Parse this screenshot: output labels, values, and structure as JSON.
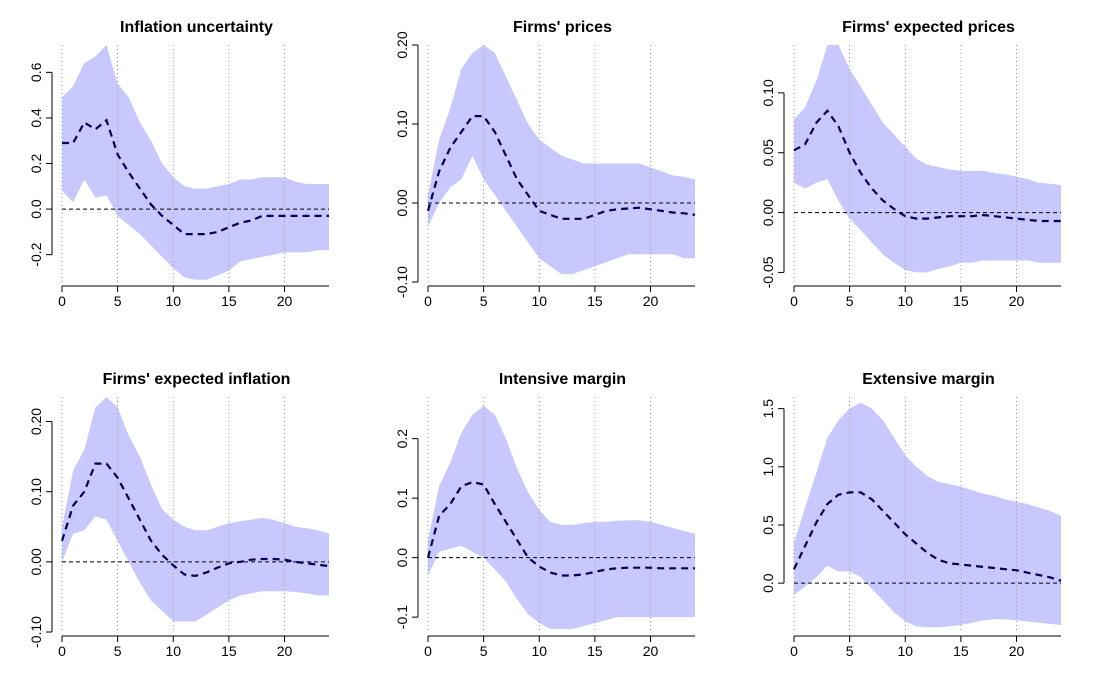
{
  "figure": {
    "band_color": "#c8c8ff",
    "line_color": "#00005a",
    "zero_color": "#000000",
    "grid_color": "#999999"
  },
  "chart_data": [
    {
      "type": "line",
      "title": "Inflation uncertainty",
      "xlabel": "",
      "ylabel": "",
      "xlim": [
        0,
        24
      ],
      "ylim": [
        -0.32,
        0.72
      ],
      "x_ticks": [
        0,
        5,
        10,
        15,
        20
      ],
      "x_tick_labels": [
        "0",
        "5",
        "10",
        "15",
        "20"
      ],
      "y_ticks": [
        -0.2,
        0.0,
        0.2,
        0.4,
        0.6
      ],
      "y_tick_labels": [
        "-0.2",
        "0.0",
        "0.2",
        "0.4",
        "0.6"
      ],
      "vgrid": [
        0,
        5,
        10,
        15,
        20
      ],
      "x": [
        0,
        1,
        2,
        3,
        4,
        5,
        6,
        7,
        8,
        9,
        10,
        11,
        12,
        13,
        14,
        15,
        16,
        17,
        18,
        19,
        20,
        21,
        22,
        23,
        24
      ],
      "series": [
        {
          "name": "median",
          "values": [
            0.29,
            0.29,
            0.38,
            0.35,
            0.39,
            0.24,
            0.16,
            0.09,
            0.02,
            -0.03,
            -0.07,
            -0.11,
            -0.11,
            -0.11,
            -0.1,
            -0.08,
            -0.06,
            -0.05,
            -0.03,
            -0.03,
            -0.03,
            -0.03,
            -0.03,
            -0.03,
            -0.03
          ]
        },
        {
          "name": "lower",
          "values": [
            0.08,
            0.03,
            0.13,
            0.05,
            0.06,
            -0.03,
            -0.07,
            -0.11,
            -0.16,
            -0.21,
            -0.26,
            -0.3,
            -0.31,
            -0.31,
            -0.29,
            -0.27,
            -0.23,
            -0.22,
            -0.21,
            -0.2,
            -0.19,
            -0.19,
            -0.19,
            -0.18,
            -0.18
          ]
        },
        {
          "name": "upper",
          "values": [
            0.49,
            0.54,
            0.64,
            0.67,
            0.72,
            0.55,
            0.49,
            0.38,
            0.3,
            0.2,
            0.14,
            0.1,
            0.09,
            0.09,
            0.1,
            0.11,
            0.13,
            0.13,
            0.14,
            0.14,
            0.14,
            0.12,
            0.11,
            0.11,
            0.11
          ]
        }
      ]
    },
    {
      "type": "line",
      "title": "Firms' prices",
      "xlabel": "",
      "ylabel": "",
      "xlim": [
        0,
        24
      ],
      "ylim": [
        -0.1,
        0.2
      ],
      "x_ticks": [
        0,
        5,
        10,
        15,
        20
      ],
      "x_tick_labels": [
        "0",
        "5",
        "10",
        "15",
        "20"
      ],
      "y_ticks": [
        -0.1,
        0.0,
        0.1,
        0.2
      ],
      "y_tick_labels": [
        "-0.10",
        "0.00",
        "0.10",
        "0.20"
      ],
      "vgrid": [
        0,
        5,
        10,
        15,
        20
      ],
      "x": [
        0,
        1,
        2,
        3,
        4,
        5,
        6,
        7,
        8,
        9,
        10,
        11,
        12,
        13,
        14,
        15,
        16,
        17,
        18,
        19,
        20,
        21,
        22,
        23,
        24
      ],
      "series": [
        {
          "name": "median",
          "values": [
            -0.01,
            0.04,
            0.07,
            0.09,
            0.11,
            0.11,
            0.09,
            0.06,
            0.03,
            0.01,
            -0.01,
            -0.015,
            -0.02,
            -0.02,
            -0.02,
            -0.015,
            -0.01,
            -0.008,
            -0.007,
            -0.006,
            -0.008,
            -0.01,
            -0.012,
            -0.013,
            -0.015
          ]
        },
        {
          "name": "lower",
          "values": [
            -0.03,
            0.0,
            0.02,
            0.03,
            0.06,
            0.03,
            0.01,
            -0.01,
            -0.03,
            -0.05,
            -0.07,
            -0.08,
            -0.09,
            -0.09,
            -0.085,
            -0.08,
            -0.075,
            -0.07,
            -0.065,
            -0.065,
            -0.065,
            -0.065,
            -0.065,
            -0.07,
            -0.07
          ]
        },
        {
          "name": "upper",
          "values": [
            0.01,
            0.08,
            0.12,
            0.17,
            0.19,
            0.2,
            0.19,
            0.16,
            0.13,
            0.1,
            0.08,
            0.07,
            0.06,
            0.055,
            0.05,
            0.05,
            0.05,
            0.05,
            0.05,
            0.05,
            0.045,
            0.04,
            0.035,
            0.033,
            0.03
          ]
        }
      ]
    },
    {
      "type": "line",
      "title": "Firms' expected prices",
      "xlabel": "",
      "ylabel": "",
      "xlim": [
        0,
        24
      ],
      "ylim": [
        -0.058,
        0.14
      ],
      "x_ticks": [
        0,
        5,
        10,
        15,
        20
      ],
      "x_tick_labels": [
        "0",
        "5",
        "10",
        "15",
        "20"
      ],
      "y_ticks": [
        -0.05,
        0.0,
        0.05,
        0.1
      ],
      "y_tick_labels": [
        "-0.05",
        "0.00",
        "0.05",
        "0.10"
      ],
      "vgrid": [
        0,
        5,
        10,
        15,
        20
      ],
      "x": [
        0,
        1,
        2,
        3,
        4,
        5,
        6,
        7,
        8,
        9,
        10,
        11,
        12,
        13,
        14,
        15,
        16,
        17,
        18,
        19,
        20,
        21,
        22,
        23,
        24
      ],
      "series": [
        {
          "name": "median",
          "values": [
            0.052,
            0.057,
            0.075,
            0.085,
            0.072,
            0.05,
            0.033,
            0.02,
            0.01,
            0.003,
            -0.003,
            -0.005,
            -0.005,
            -0.004,
            -0.003,
            -0.003,
            -0.003,
            -0.002,
            -0.003,
            -0.004,
            -0.005,
            -0.006,
            -0.007,
            -0.007,
            -0.007
          ]
        },
        {
          "name": "lower",
          "values": [
            0.025,
            0.02,
            0.025,
            0.028,
            0.01,
            -0.005,
            -0.015,
            -0.025,
            -0.035,
            -0.042,
            -0.048,
            -0.05,
            -0.05,
            -0.047,
            -0.045,
            -0.042,
            -0.042,
            -0.04,
            -0.04,
            -0.04,
            -0.04,
            -0.04,
            -0.042,
            -0.042,
            -0.042
          ]
        },
        {
          "name": "upper",
          "values": [
            0.078,
            0.088,
            0.11,
            0.14,
            0.14,
            0.12,
            0.105,
            0.09,
            0.075,
            0.065,
            0.055,
            0.045,
            0.04,
            0.038,
            0.036,
            0.035,
            0.035,
            0.035,
            0.033,
            0.032,
            0.03,
            0.028,
            0.025,
            0.024,
            0.023
          ]
        }
      ]
    },
    {
      "type": "line",
      "title": "Firms' expected inflation",
      "xlabel": "",
      "ylabel": "",
      "xlim": [
        0,
        24
      ],
      "ylim": [
        -0.1,
        0.235
      ],
      "x_ticks": [
        0,
        5,
        10,
        15,
        20
      ],
      "x_tick_labels": [
        "0",
        "5",
        "10",
        "15",
        "20"
      ],
      "y_ticks": [
        -0.1,
        0.0,
        0.1,
        0.2
      ],
      "y_tick_labels": [
        "-0.10",
        "0.00",
        "0.10",
        "0.20"
      ],
      "vgrid": [
        0,
        5,
        10,
        15,
        20
      ],
      "x": [
        0,
        1,
        2,
        3,
        4,
        5,
        6,
        7,
        8,
        9,
        10,
        11,
        12,
        13,
        14,
        15,
        16,
        17,
        18,
        19,
        20,
        21,
        22,
        23,
        24
      ],
      "series": [
        {
          "name": "median",
          "values": [
            0.03,
            0.08,
            0.1,
            0.14,
            0.14,
            0.12,
            0.09,
            0.06,
            0.03,
            0.01,
            -0.005,
            -0.018,
            -0.02,
            -0.015,
            -0.008,
            -0.002,
            0.0,
            0.003,
            0.004,
            0.004,
            0.003,
            0.0,
            -0.002,
            -0.004,
            -0.006
          ]
        },
        {
          "name": "lower",
          "values": [
            0.0,
            0.04,
            0.045,
            0.065,
            0.06,
            0.03,
            0.0,
            -0.03,
            -0.055,
            -0.07,
            -0.085,
            -0.085,
            -0.085,
            -0.075,
            -0.065,
            -0.055,
            -0.048,
            -0.045,
            -0.042,
            -0.042,
            -0.042,
            -0.043,
            -0.045,
            -0.048,
            -0.048
          ]
        },
        {
          "name": "upper",
          "values": [
            0.05,
            0.13,
            0.16,
            0.22,
            0.235,
            0.22,
            0.18,
            0.15,
            0.11,
            0.075,
            0.06,
            0.05,
            0.045,
            0.045,
            0.05,
            0.055,
            0.058,
            0.06,
            0.063,
            0.06,
            0.055,
            0.05,
            0.048,
            0.045,
            0.04
          ]
        }
      ]
    },
    {
      "type": "line",
      "title": "Intensive margin",
      "xlabel": "",
      "ylabel": "",
      "xlim": [
        0,
        24
      ],
      "ylim": [
        -0.125,
        0.27
      ],
      "x_ticks": [
        0,
        5,
        10,
        15,
        20
      ],
      "x_tick_labels": [
        "0",
        "5",
        "10",
        "15",
        "20"
      ],
      "y_ticks": [
        -0.1,
        0.0,
        0.1,
        0.2
      ],
      "y_tick_labels": [
        "-0.1",
        "0.0",
        "0.1",
        "0.2"
      ],
      "vgrid": [
        0,
        5,
        10,
        15,
        20
      ],
      "x": [
        0,
        1,
        2,
        3,
        4,
        5,
        6,
        7,
        8,
        9,
        10,
        11,
        12,
        13,
        14,
        15,
        16,
        17,
        18,
        19,
        20,
        21,
        22,
        23,
        24
      ],
      "series": [
        {
          "name": "median",
          "values": [
            0.0,
            0.07,
            0.09,
            0.12,
            0.127,
            0.123,
            0.09,
            0.06,
            0.03,
            0.0,
            -0.015,
            -0.025,
            -0.03,
            -0.03,
            -0.028,
            -0.024,
            -0.02,
            -0.018,
            -0.017,
            -0.017,
            -0.017,
            -0.018,
            -0.018,
            -0.018,
            -0.018
          ]
        },
        {
          "name": "lower",
          "values": [
            -0.03,
            0.01,
            0.015,
            0.02,
            0.01,
            0.0,
            -0.02,
            -0.04,
            -0.07,
            -0.095,
            -0.11,
            -0.12,
            -0.12,
            -0.12,
            -0.115,
            -0.11,
            -0.105,
            -0.1,
            -0.1,
            -0.1,
            -0.1,
            -0.1,
            -0.1,
            -0.1,
            -0.1
          ]
        },
        {
          "name": "upper",
          "values": [
            0.03,
            0.12,
            0.16,
            0.21,
            0.24,
            0.255,
            0.24,
            0.2,
            0.15,
            0.11,
            0.08,
            0.06,
            0.055,
            0.055,
            0.058,
            0.06,
            0.06,
            0.062,
            0.063,
            0.063,
            0.06,
            0.055,
            0.05,
            0.045,
            0.04
          ]
        }
      ]
    },
    {
      "type": "line",
      "title": "Extensive margin",
      "xlabel": "",
      "ylabel": "",
      "xlim": [
        0,
        24
      ],
      "ylim": [
        -0.42,
        1.6
      ],
      "x_ticks": [
        0,
        5,
        10,
        15,
        20
      ],
      "x_tick_labels": [
        "0",
        "5",
        "10",
        "15",
        "20"
      ],
      "y_ticks": [
        0.0,
        0.5,
        1.0,
        1.5
      ],
      "y_tick_labels": [
        "0.0",
        "0.5",
        "1.0",
        "1.5"
      ],
      "vgrid": [
        0,
        5,
        10,
        15,
        20
      ],
      "x": [
        0,
        1,
        2,
        3,
        4,
        5,
        6,
        7,
        8,
        9,
        10,
        11,
        12,
        13,
        14,
        15,
        16,
        17,
        18,
        19,
        20,
        21,
        22,
        23,
        24
      ],
      "series": [
        {
          "name": "median",
          "values": [
            0.12,
            0.32,
            0.52,
            0.68,
            0.76,
            0.78,
            0.78,
            0.72,
            0.62,
            0.52,
            0.42,
            0.34,
            0.26,
            0.2,
            0.17,
            0.16,
            0.15,
            0.14,
            0.13,
            0.12,
            0.11,
            0.09,
            0.07,
            0.05,
            0.02
          ]
        },
        {
          "name": "lower",
          "values": [
            -0.1,
            -0.03,
            0.05,
            0.15,
            0.1,
            0.1,
            0.05,
            -0.05,
            -0.15,
            -0.25,
            -0.33,
            -0.37,
            -0.38,
            -0.38,
            -0.37,
            -0.36,
            -0.34,
            -0.32,
            -0.31,
            -0.31,
            -0.32,
            -0.33,
            -0.34,
            -0.35,
            -0.36
          ]
        },
        {
          "name": "upper",
          "values": [
            0.35,
            0.65,
            0.95,
            1.25,
            1.4,
            1.5,
            1.55,
            1.5,
            1.4,
            1.25,
            1.1,
            1.0,
            0.92,
            0.87,
            0.85,
            0.83,
            0.8,
            0.77,
            0.75,
            0.72,
            0.7,
            0.68,
            0.65,
            0.62,
            0.58
          ]
        }
      ]
    }
  ]
}
